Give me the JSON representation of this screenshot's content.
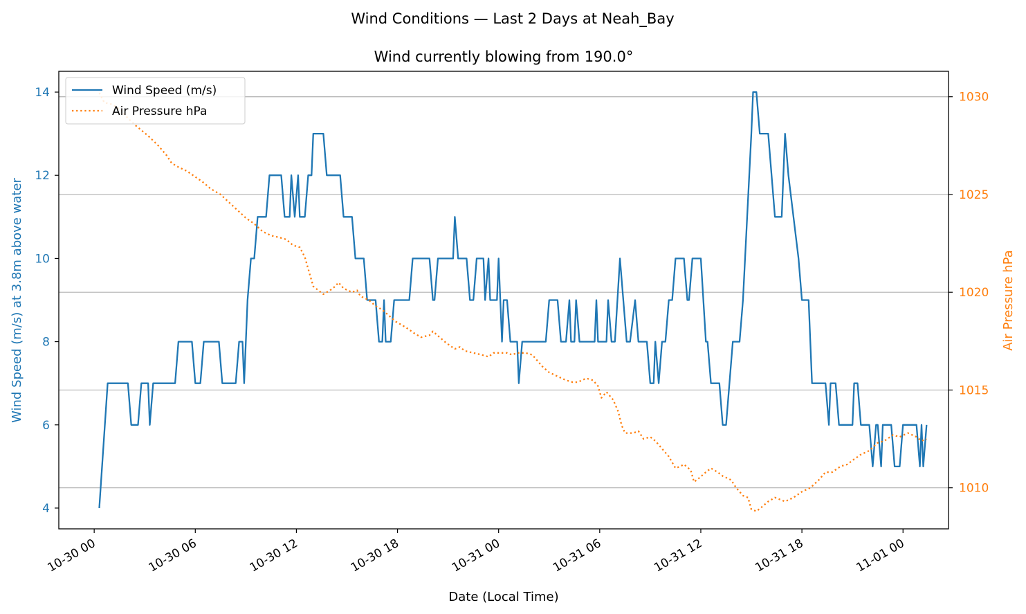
{
  "chart_data": {
    "type": "line",
    "title": "Wind Conditions — Last 2 Days at Neah_Bay",
    "subtitle": "Wind currently blowing from 190.0°",
    "xlabel": "Date (Local Time)",
    "ylabel": "Wind Speed (m/s) at 3.8m above water",
    "y2label": "Air Pressure hPa",
    "x_ticks": [
      {
        "label": "10-30 00",
        "hour": 0
      },
      {
        "label": "10-30 06",
        "hour": 6
      },
      {
        "label": "10-30 12",
        "hour": 12
      },
      {
        "label": "10-30 18",
        "hour": 18
      },
      {
        "label": "10-31 00",
        "hour": 24
      },
      {
        "label": "10-31 06",
        "hour": 30
      },
      {
        "label": "10-31 12",
        "hour": 36
      },
      {
        "label": "10-31 18",
        "hour": 42
      },
      {
        "label": "11-01 00",
        "hour": 48
      }
    ],
    "x_range_hours": [
      -2.1,
      50.7
    ],
    "ylim": [
      3.5,
      14.5
    ],
    "y_ticks": [
      4,
      6,
      8,
      10,
      12,
      14
    ],
    "y2lim": [
      1007.9,
      1031.3
    ],
    "y2_ticks": [
      1010,
      1015,
      1020,
      1025,
      1030
    ],
    "grid": "horizontal at right-axis ticks",
    "legend_position": "upper-left",
    "colors": {
      "wind": "#1f77b4",
      "pressure": "#ff7f0e"
    },
    "series": [
      {
        "name": "Wind Speed (m/s)",
        "axis": "left",
        "style": "solid",
        "points": [
          [
            0.3,
            4
          ],
          [
            0.8,
            7
          ],
          [
            2,
            7
          ],
          [
            2.2,
            6
          ],
          [
            2.6,
            6
          ],
          [
            2.8,
            7
          ],
          [
            3.2,
            7
          ],
          [
            3.3,
            6
          ],
          [
            3.5,
            7
          ],
          [
            4.8,
            7
          ],
          [
            5,
            8
          ],
          [
            5.8,
            8
          ],
          [
            6,
            7
          ],
          [
            6.3,
            7
          ],
          [
            6.5,
            8
          ],
          [
            7.4,
            8
          ],
          [
            7.6,
            7
          ],
          [
            8.4,
            7
          ],
          [
            8.6,
            8
          ],
          [
            8.8,
            8
          ],
          [
            8.9,
            7
          ],
          [
            9.1,
            9
          ],
          [
            9.3,
            10
          ],
          [
            9.5,
            10
          ],
          [
            9.7,
            11
          ],
          [
            10.2,
            11
          ],
          [
            10.4,
            12
          ],
          [
            11.1,
            12
          ],
          [
            11.3,
            11
          ],
          [
            11.6,
            11
          ],
          [
            11.7,
            12
          ],
          [
            11.9,
            11
          ],
          [
            12.1,
            12
          ],
          [
            12.2,
            11
          ],
          [
            12.5,
            11
          ],
          [
            12.7,
            12
          ],
          [
            12.9,
            12
          ],
          [
            13,
            13
          ],
          [
            13.6,
            13
          ],
          [
            13.8,
            12
          ],
          [
            14.6,
            12
          ],
          [
            14.8,
            11
          ],
          [
            15.3,
            11
          ],
          [
            15.5,
            10
          ],
          [
            16,
            10
          ],
          [
            16.2,
            9
          ],
          [
            16.7,
            9
          ],
          [
            16.9,
            8
          ],
          [
            17.1,
            8
          ],
          [
            17.2,
            9
          ],
          [
            17.3,
            8
          ],
          [
            17.6,
            8
          ],
          [
            17.8,
            9
          ],
          [
            18.7,
            9
          ],
          [
            18.9,
            10
          ],
          [
            19.9,
            10
          ],
          [
            20.1,
            9
          ],
          [
            20.2,
            9
          ],
          [
            20.4,
            10
          ],
          [
            21.3,
            10
          ],
          [
            21.4,
            11
          ],
          [
            21.6,
            10
          ],
          [
            22.1,
            10
          ],
          [
            22.3,
            9
          ],
          [
            22.5,
            9
          ],
          [
            22.7,
            10
          ],
          [
            23.1,
            10
          ],
          [
            23.2,
            9
          ],
          [
            23.4,
            10
          ],
          [
            23.5,
            9
          ],
          [
            23.9,
            9
          ],
          [
            24,
            10
          ],
          [
            24.2,
            8
          ],
          [
            24.3,
            9
          ],
          [
            24.5,
            9
          ],
          [
            24.7,
            8
          ],
          [
            25.1,
            8
          ],
          [
            25.2,
            7
          ],
          [
            25.4,
            8
          ],
          [
            26.8,
            8
          ],
          [
            27,
            9
          ],
          [
            27.5,
            9
          ],
          [
            27.7,
            8
          ],
          [
            28,
            8
          ],
          [
            28.2,
            9
          ],
          [
            28.3,
            8
          ],
          [
            28.5,
            8
          ],
          [
            28.6,
            9
          ],
          [
            28.8,
            8
          ],
          [
            29.7,
            8
          ],
          [
            29.8,
            9
          ],
          [
            29.9,
            8
          ],
          [
            30.4,
            8
          ],
          [
            30.5,
            9
          ],
          [
            30.7,
            8
          ],
          [
            30.9,
            8
          ],
          [
            31.2,
            10
          ],
          [
            31.6,
            8
          ],
          [
            31.8,
            8
          ],
          [
            32.1,
            9
          ],
          [
            32.3,
            8
          ],
          [
            32.6,
            8
          ],
          [
            32.8,
            8
          ],
          [
            33,
            7
          ],
          [
            33.2,
            7
          ],
          [
            33.3,
            8
          ],
          [
            33.5,
            7
          ],
          [
            33.7,
            8
          ],
          [
            33.9,
            8
          ],
          [
            34.1,
            9
          ],
          [
            34.3,
            9
          ],
          [
            34.5,
            10
          ],
          [
            35,
            10
          ],
          [
            35.2,
            9
          ],
          [
            35.3,
            9
          ],
          [
            35.5,
            10
          ],
          [
            36,
            10
          ],
          [
            36.3,
            8
          ],
          [
            36.4,
            8
          ],
          [
            36.6,
            7
          ],
          [
            37.1,
            7
          ],
          [
            37.3,
            6
          ],
          [
            37.5,
            6
          ],
          [
            37.9,
            8
          ],
          [
            38.3,
            8
          ],
          [
            38.5,
            9
          ],
          [
            39,
            13
          ],
          [
            39.1,
            14
          ],
          [
            39.3,
            14
          ],
          [
            39.5,
            13
          ],
          [
            40,
            13
          ],
          [
            40.4,
            11
          ],
          [
            40.8,
            11
          ],
          [
            41,
            13
          ],
          [
            41.2,
            12
          ],
          [
            41.8,
            10
          ],
          [
            42,
            9
          ],
          [
            42.4,
            9
          ],
          [
            42.6,
            7
          ],
          [
            43.4,
            7
          ],
          [
            43.6,
            6
          ],
          [
            43.7,
            7
          ],
          [
            44,
            7
          ],
          [
            44.2,
            6
          ],
          [
            45,
            6
          ],
          [
            45.1,
            7
          ],
          [
            45.3,
            7
          ],
          [
            45.5,
            6
          ],
          [
            46,
            6
          ],
          [
            46.2,
            5
          ],
          [
            46.4,
            6
          ],
          [
            46.5,
            6
          ],
          [
            46.7,
            5
          ],
          [
            46.8,
            6
          ],
          [
            47.3,
            6
          ],
          [
            47.5,
            5
          ],
          [
            47.8,
            5
          ],
          [
            48,
            6
          ],
          [
            48.8,
            6
          ],
          [
            49,
            5
          ],
          [
            49.1,
            6
          ],
          [
            49.2,
            5
          ],
          [
            49.4,
            6
          ]
        ]
      },
      {
        "name": "Air Pressure hPa",
        "axis": "right",
        "style": "dotted",
        "points": [
          [
            0.3,
            1030.2
          ],
          [
            0.6,
            1029.7
          ],
          [
            1.1,
            1029.6
          ],
          [
            1.6,
            1029.3
          ],
          [
            2,
            1028.9
          ],
          [
            2.5,
            1028.5
          ],
          [
            3.2,
            1028
          ],
          [
            3.8,
            1027.5
          ],
          [
            4.3,
            1027
          ],
          [
            4.6,
            1026.6
          ],
          [
            5,
            1026.4
          ],
          [
            5.5,
            1026.2
          ],
          [
            6,
            1025.9
          ],
          [
            6.5,
            1025.6
          ],
          [
            6.9,
            1025.3
          ],
          [
            7.5,
            1025
          ],
          [
            8,
            1024.6
          ],
          [
            8.5,
            1024.2
          ],
          [
            9,
            1023.8
          ],
          [
            9.5,
            1023.5
          ],
          [
            10,
            1023.1
          ],
          [
            10.5,
            1022.9
          ],
          [
            11,
            1022.8
          ],
          [
            11.4,
            1022.7
          ],
          [
            11.8,
            1022.4
          ],
          [
            12.2,
            1022.3
          ],
          [
            12.5,
            1021.8
          ],
          [
            12.8,
            1020.9
          ],
          [
            13,
            1020.3
          ],
          [
            13.3,
            1020.1
          ],
          [
            13.6,
            1019.9
          ],
          [
            14,
            1020.1
          ],
          [
            14.3,
            1020.3
          ],
          [
            14.5,
            1020.5
          ],
          [
            14.8,
            1020.2
          ],
          [
            15.3,
            1020
          ],
          [
            15.6,
            1020.1
          ],
          [
            15.8,
            1019.8
          ],
          [
            16.3,
            1019.6
          ],
          [
            16.7,
            1019.3
          ],
          [
            17.1,
            1019.1
          ],
          [
            17.5,
            1018.8
          ],
          [
            17.9,
            1018.5
          ],
          [
            18.5,
            1018.2
          ],
          [
            19,
            1017.9
          ],
          [
            19.4,
            1017.7
          ],
          [
            19.9,
            1017.8
          ],
          [
            20.1,
            1018
          ],
          [
            20.5,
            1017.7
          ],
          [
            20.9,
            1017.4
          ],
          [
            21.4,
            1017.1
          ],
          [
            21.7,
            1017.2
          ],
          [
            22,
            1017
          ],
          [
            22.5,
            1016.9
          ],
          [
            23,
            1016.8
          ],
          [
            23.4,
            1016.7
          ],
          [
            23.7,
            1016.9
          ],
          [
            24,
            1016.9
          ],
          [
            24.5,
            1016.9
          ],
          [
            24.8,
            1016.8
          ],
          [
            25.1,
            1016.9
          ],
          [
            25.6,
            1016.9
          ],
          [
            26,
            1016.8
          ],
          [
            26.6,
            1016.2
          ],
          [
            27,
            1015.9
          ],
          [
            27.5,
            1015.7
          ],
          [
            28,
            1015.5
          ],
          [
            28.4,
            1015.4
          ],
          [
            28.7,
            1015.4
          ],
          [
            29.2,
            1015.6
          ],
          [
            29.6,
            1015.5
          ],
          [
            29.9,
            1015.2
          ],
          [
            30.1,
            1014.6
          ],
          [
            30.4,
            1014.9
          ],
          [
            30.8,
            1014.5
          ],
          [
            31.1,
            1013.9
          ],
          [
            31.3,
            1013.2
          ],
          [
            31.5,
            1012.8
          ],
          [
            32,
            1012.8
          ],
          [
            32.3,
            1012.9
          ],
          [
            32.6,
            1012.5
          ],
          [
            33,
            1012.6
          ],
          [
            33.3,
            1012.4
          ],
          [
            33.6,
            1012.1
          ],
          [
            34.1,
            1011.6
          ],
          [
            34.5,
            1011
          ],
          [
            34.8,
            1011.1
          ],
          [
            35,
            1011.2
          ],
          [
            35.4,
            1010.9
          ],
          [
            35.6,
            1010.3
          ],
          [
            35.9,
            1010.5
          ],
          [
            36.3,
            1010.8
          ],
          [
            36.6,
            1011
          ],
          [
            37,
            1010.8
          ],
          [
            37.3,
            1010.6
          ],
          [
            37.8,
            1010.4
          ],
          [
            38.1,
            1010
          ],
          [
            38.5,
            1009.6
          ],
          [
            38.8,
            1009.5
          ],
          [
            39,
            1008.9
          ],
          [
            39.3,
            1008.8
          ],
          [
            39.6,
            1009
          ],
          [
            40,
            1009.3
          ],
          [
            40.4,
            1009.5
          ],
          [
            40.7,
            1009.4
          ],
          [
            41,
            1009.3
          ],
          [
            41.5,
            1009.5
          ],
          [
            42,
            1009.8
          ],
          [
            42.5,
            1010
          ],
          [
            43,
            1010.4
          ],
          [
            43.4,
            1010.8
          ],
          [
            43.8,
            1010.8
          ],
          [
            44.3,
            1011.1
          ],
          [
            44.7,
            1011.2
          ],
          [
            45,
            1011.4
          ],
          [
            45.5,
            1011.7
          ],
          [
            46,
            1011.9
          ],
          [
            46.5,
            1012.3
          ],
          [
            46.9,
            1012.4
          ],
          [
            47.4,
            1012.7
          ],
          [
            47.8,
            1012.6
          ],
          [
            48.3,
            1012.8
          ],
          [
            48.8,
            1012.6
          ],
          [
            49.1,
            1012.4
          ],
          [
            49.4,
            1012.5
          ]
        ]
      }
    ]
  }
}
